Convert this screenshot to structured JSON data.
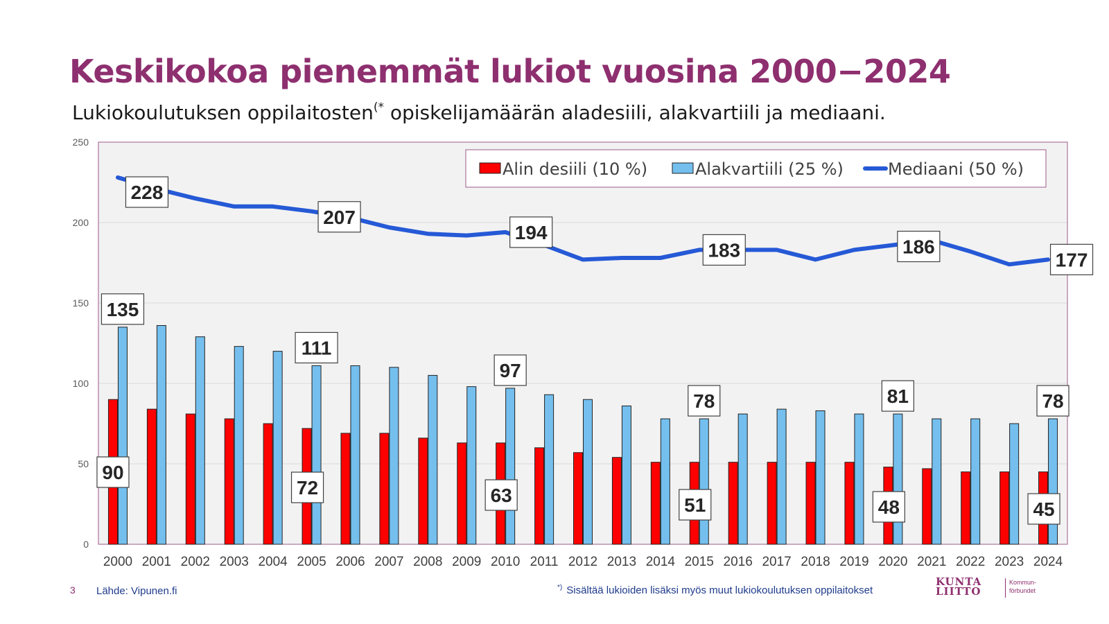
{
  "page": {
    "title": "Keskikokoa pienemmät lukiot vuosina 2000−2024",
    "subtitle_main": "Lukiokoulutuksen oppilaitosten",
    "subtitle_sup": "(*",
    "subtitle_rest": " opiskelijamäärän aladesiili, alakvartiili ja mediaani.",
    "page_number": "3",
    "source": "Lähde: Vipunen.fi",
    "footnote_mark": "*)",
    "footnote": "Sisältää lukioiden lisäksi myös muut lukiokoulutuksen oppilaitokset",
    "logo_line1": "KUNTA",
    "logo_line2": "LIITTO",
    "logo_sub1": "Kommun-",
    "logo_sub2": "förbundet"
  },
  "colors": {
    "title": "#8e2f6f",
    "decile": "#ff0000",
    "quartile": "#74bfee",
    "median": "#2559d6",
    "plot_bg": "#f2f2f2",
    "plot_border": "#9c5a8a"
  },
  "chart_data": {
    "type": "bar",
    "categories": [
      "2000",
      "2001",
      "2002",
      "2003",
      "2004",
      "2005",
      "2006",
      "2007",
      "2008",
      "2009",
      "2010",
      "2011",
      "2012",
      "2013",
      "2014",
      "2015",
      "2016",
      "2017",
      "2018",
      "2019",
      "2020",
      "2021",
      "2022",
      "2023",
      "2024"
    ],
    "series": [
      {
        "name": "Alin desiili (10 %)",
        "type": "bar",
        "color": "#ff0000",
        "values": [
          90,
          84,
          81,
          78,
          75,
          72,
          69,
          69,
          66,
          63,
          63,
          60,
          57,
          54,
          51,
          51,
          51,
          51,
          51,
          51,
          48,
          47,
          45,
          45,
          45
        ]
      },
      {
        "name": "Alakvartiili (25 %)",
        "type": "bar",
        "color": "#74bfee",
        "values": [
          135,
          136,
          129,
          123,
          120,
          111,
          111,
          110,
          105,
          98,
          97,
          93,
          90,
          86,
          78,
          78,
          81,
          84,
          83,
          81,
          81,
          78,
          78,
          75,
          78
        ]
      },
      {
        "name": "Mediaani (50 %)",
        "type": "line",
        "color": "#2559d6",
        "values": [
          228,
          221,
          215,
          210,
          210,
          207,
          203,
          197,
          193,
          192,
          194,
          186,
          177,
          178,
          178,
          183,
          183,
          183,
          177,
          183,
          186,
          189,
          182,
          174,
          177
        ]
      }
    ],
    "labels": {
      "decile": [
        {
          "year": "2000",
          "value": "90"
        },
        {
          "year": "2005",
          "value": "72"
        },
        {
          "year": "2010",
          "value": "63"
        },
        {
          "year": "2015",
          "value": "51"
        },
        {
          "year": "2020",
          "value": "48"
        },
        {
          "year": "2024",
          "value": "45"
        }
      ],
      "quartile": [
        {
          "year": "2000",
          "value": "135"
        },
        {
          "year": "2005",
          "value": "111"
        },
        {
          "year": "2010",
          "value": "97"
        },
        {
          "year": "2015",
          "value": "78"
        },
        {
          "year": "2020",
          "value": "81"
        },
        {
          "year": "2024",
          "value": "78"
        }
      ],
      "median": [
        {
          "year": "2000",
          "value": "228"
        },
        {
          "year": "2005",
          "value": "207"
        },
        {
          "year": "2010",
          "value": "194"
        },
        {
          "year": "2015",
          "value": "183"
        },
        {
          "year": "2020",
          "value": "186"
        },
        {
          "year": "2024",
          "value": "177"
        }
      ]
    },
    "y_ticks": [
      "0",
      "50",
      "100",
      "150",
      "200",
      "250"
    ],
    "ylim": [
      0,
      250
    ],
    "grid": true,
    "legend_position": "top-right",
    "xlabel": "",
    "ylabel": ""
  }
}
